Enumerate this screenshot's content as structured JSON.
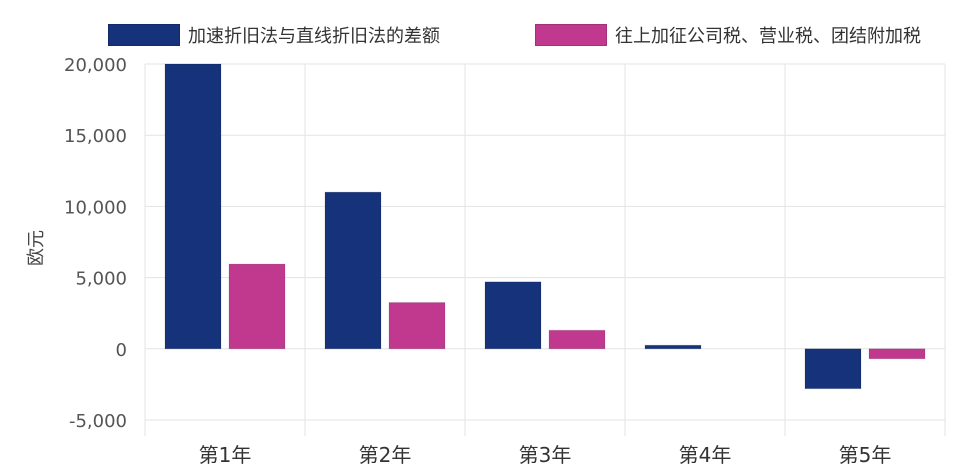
{
  "chart_data": {
    "type": "bar",
    "title": "",
    "xlabel": "",
    "ylabel": "欧元",
    "categories": [
      "第1年",
      "第2年",
      "第3年",
      "第4年",
      "第5年"
    ],
    "series": [
      {
        "name": "加速折旧法与直线折旧法的差额",
        "color": "#16327a",
        "values": [
          20000,
          11000,
          4700,
          250,
          -2800
        ]
      },
      {
        "name": "往上加征公司税、营业税、团结附加税",
        "color": "#c0398f",
        "values": [
          5950,
          3250,
          1300,
          0,
          -700
        ]
      }
    ],
    "ylim": [
      -5000,
      20000
    ],
    "yticks": [
      -5000,
      0,
      5000,
      10000,
      15000,
      20000
    ],
    "ytick_labels": [
      "-5,000",
      "0",
      "5,000",
      "10,000",
      "15,000",
      "20,000"
    ],
    "grid": true,
    "legend_position": "top"
  }
}
